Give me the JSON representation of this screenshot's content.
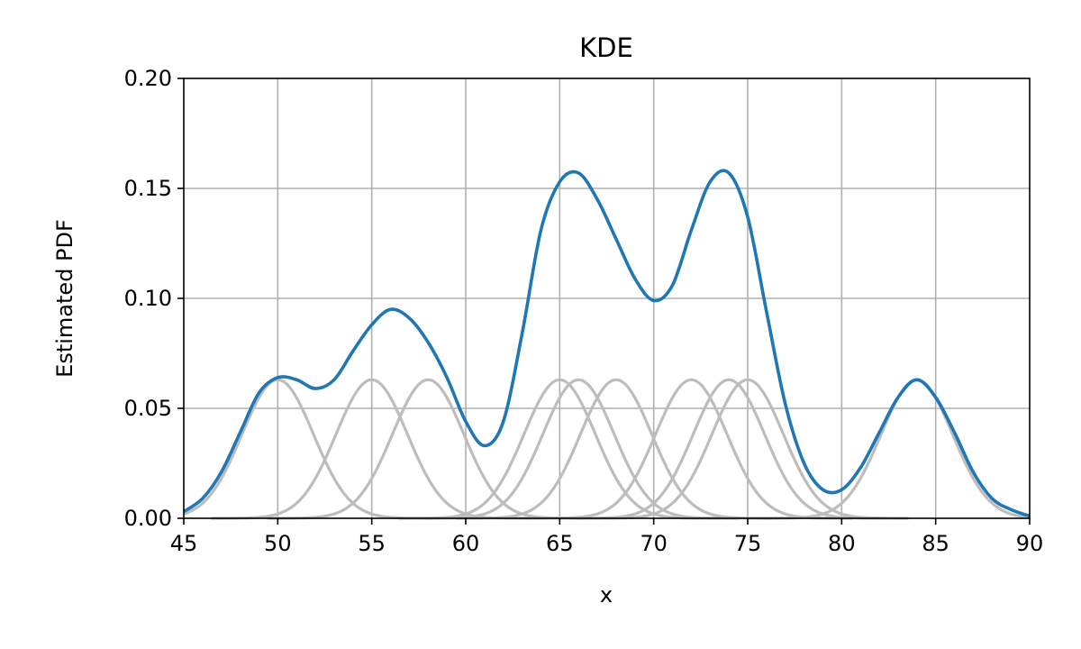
{
  "chart_data": {
    "type": "line",
    "title": "KDE",
    "xlabel": "x",
    "ylabel": "Estimated PDF",
    "xlim": [
      45,
      90
    ],
    "ylim": [
      0,
      0.2
    ],
    "x_ticks": [
      45,
      50,
      55,
      60,
      65,
      70,
      75,
      80,
      85,
      90
    ],
    "x_tick_labels": [
      "45",
      "50",
      "55",
      "60",
      "65",
      "70",
      "75",
      "80",
      "85",
      "90"
    ],
    "y_ticks": [
      0,
      0.05,
      0.1,
      0.15,
      0.2
    ],
    "y_tick_labels": [
      "0.00",
      "0.05",
      "0.10",
      "0.15",
      "0.20"
    ],
    "grid": true,
    "kernel_bandwidth": 1.9,
    "kernel_peak": 0.063,
    "kernel_centers": [
      50,
      55,
      58,
      65,
      66,
      68,
      72,
      74,
      75,
      84
    ],
    "series": [
      {
        "role": "kde",
        "color": "#1f77b4",
        "x": [
          45,
          46,
          47,
          48,
          49,
          50,
          51,
          52,
          53,
          54,
          55,
          56,
          57,
          58,
          59,
          60,
          61,
          62,
          63,
          64,
          65,
          66,
          67,
          68,
          69,
          70,
          71,
          72,
          73,
          74,
          75,
          76,
          77,
          78,
          79,
          80,
          81,
          82,
          83,
          84,
          85,
          86,
          87,
          88,
          89,
          90
        ],
        "y": [
          0.003,
          0.009,
          0.021,
          0.039,
          0.057,
          0.064,
          0.063,
          0.059,
          0.063,
          0.076,
          0.088,
          0.095,
          0.091,
          0.08,
          0.064,
          0.044,
          0.033,
          0.044,
          0.084,
          0.131,
          0.153,
          0.157,
          0.145,
          0.127,
          0.109,
          0.099,
          0.106,
          0.131,
          0.153,
          0.157,
          0.137,
          0.094,
          0.052,
          0.025,
          0.013,
          0.013,
          0.023,
          0.039,
          0.055,
          0.063,
          0.055,
          0.039,
          0.021,
          0.009,
          0.004,
          0.001
        ]
      }
    ],
    "kernel_color": "#bdbdbd"
  }
}
